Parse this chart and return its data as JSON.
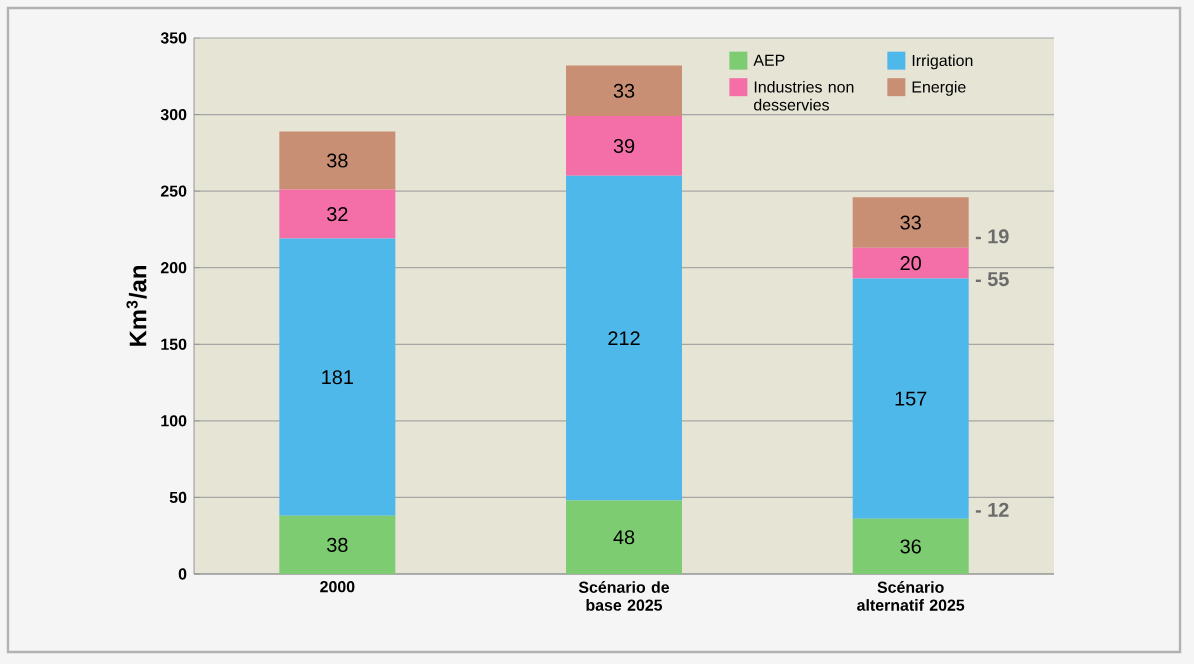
{
  "chart_data": {
    "type": "bar",
    "stacked": true,
    "ylabel": "Km$^{3}$/an",
    "categories": [
      "2000",
      "Scénario de base 2025",
      "Scénario alternatif 2025"
    ],
    "series": [
      {
        "name": "AEP",
        "color": "#7dcc72",
        "values": [
          38,
          48,
          36
        ]
      },
      {
        "name": "Irrigation",
        "color": "#4fb8ea",
        "values": [
          181,
          212,
          157
        ]
      },
      {
        "name": "Industries non desservies",
        "color": "#f46fa8",
        "values": [
          32,
          39,
          20
        ]
      },
      {
        "name": "Energie",
        "color": "#c98f74",
        "values": [
          38,
          33,
          33
        ]
      }
    ],
    "ylim": [
      0,
      350
    ],
    "yticks": [
      0,
      50,
      100,
      150,
      200,
      250,
      300,
      350
    ],
    "grid": "y",
    "legend": "top right",
    "data_labels": true,
    "annotations": [
      "- 19",
      "- 55",
      "- 12"
    ]
  }
}
